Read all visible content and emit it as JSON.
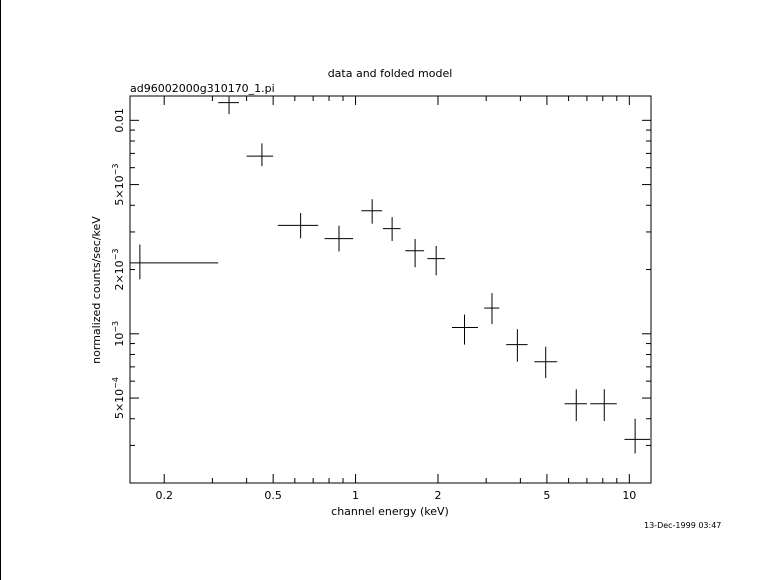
{
  "chart_data": {
    "type": "scatter",
    "title": "data and folded model",
    "subtitle": "ad96002000g310170_1.pi",
    "xlabel": "channel energy (keV)",
    "ylabel": "normalized counts/sec/keV",
    "xscale": "log",
    "yscale": "log",
    "xlim": [
      0.15,
      12.0
    ],
    "ylim": [
      0.0002,
      0.013
    ],
    "grid": false,
    "x_ticks": [
      {
        "value": 0.2,
        "label": "0.2"
      },
      {
        "value": 0.5,
        "label": "0.5"
      },
      {
        "value": 1,
        "label": "1"
      },
      {
        "value": 2,
        "label": "2"
      },
      {
        "value": 5,
        "label": "5"
      },
      {
        "value": 10,
        "label": "10"
      }
    ],
    "y_ticks": [
      {
        "value": 0.01,
        "label": "0.01"
      },
      {
        "value": 0.005,
        "label": "5×10",
        "exp": "−3"
      },
      {
        "value": 0.002,
        "label": "2×10",
        "exp": "−3"
      },
      {
        "value": 0.001,
        "label": "10",
        "exp": "−3"
      },
      {
        "value": 0.0005,
        "label": "5×10",
        "exp": "−4"
      }
    ],
    "series": [
      {
        "points": [
          {
            "x": 0.163,
            "xlo": 0.15,
            "xhi": 0.315,
            "y": 0.00215,
            "ylo": 0.0018,
            "yhi": 0.00262
          },
          {
            "x": 0.345,
            "xlo": 0.315,
            "xhi": 0.375,
            "y": 0.0121,
            "ylo": 0.0107,
            "yhi": 0.0129
          },
          {
            "x": 0.455,
            "xlo": 0.4,
            "xhi": 0.5,
            "y": 0.0068,
            "ylo": 0.0061,
            "yhi": 0.0078
          },
          {
            "x": 0.63,
            "xlo": 0.52,
            "xhi": 0.73,
            "y": 0.00322,
            "ylo": 0.0028,
            "yhi": 0.00368
          },
          {
            "x": 0.87,
            "xlo": 0.77,
            "xhi": 0.98,
            "y": 0.00279,
            "ylo": 0.00243,
            "yhi": 0.00321
          },
          {
            "x": 1.15,
            "xlo": 1.05,
            "xhi": 1.25,
            "y": 0.00377,
            "ylo": 0.00328,
            "yhi": 0.00427
          },
          {
            "x": 1.36,
            "xlo": 1.26,
            "xhi": 1.46,
            "y": 0.00311,
            "ylo": 0.00272,
            "yhi": 0.00352
          },
          {
            "x": 1.65,
            "xlo": 1.52,
            "xhi": 1.78,
            "y": 0.00245,
            "ylo": 0.00205,
            "yhi": 0.00278
          },
          {
            "x": 1.97,
            "xlo": 1.83,
            "xhi": 2.12,
            "y": 0.00225,
            "ylo": 0.00188,
            "yhi": 0.00258
          },
          {
            "x": 2.5,
            "xlo": 2.25,
            "xhi": 2.8,
            "y": 0.00107,
            "ylo": 0.00089,
            "yhi": 0.00123
          },
          {
            "x": 3.15,
            "xlo": 2.95,
            "xhi": 3.35,
            "y": 0.00132,
            "ylo": 0.00111,
            "yhi": 0.00155
          },
          {
            "x": 3.9,
            "xlo": 3.55,
            "xhi": 4.25,
            "y": 0.00089,
            "ylo": 0.00074,
            "yhi": 0.00105
          },
          {
            "x": 4.95,
            "xlo": 4.5,
            "xhi": 5.45,
            "y": 0.00074,
            "ylo": 0.00062,
            "yhi": 0.00087
          },
          {
            "x": 6.4,
            "xlo": 5.8,
            "xhi": 7.0,
            "y": 0.00047,
            "ylo": 0.00039,
            "yhi": 0.00055
          },
          {
            "x": 8.1,
            "xlo": 7.2,
            "xhi": 9.0,
            "y": 0.00047,
            "ylo": 0.00039,
            "yhi": 0.00055
          },
          {
            "x": 10.5,
            "xlo": 9.6,
            "xhi": 11.9,
            "y": 0.00032,
            "ylo": 0.000275,
            "yhi": 0.0004
          }
        ]
      }
    ]
  },
  "timestamp": "13-Dec-1999 03:47"
}
